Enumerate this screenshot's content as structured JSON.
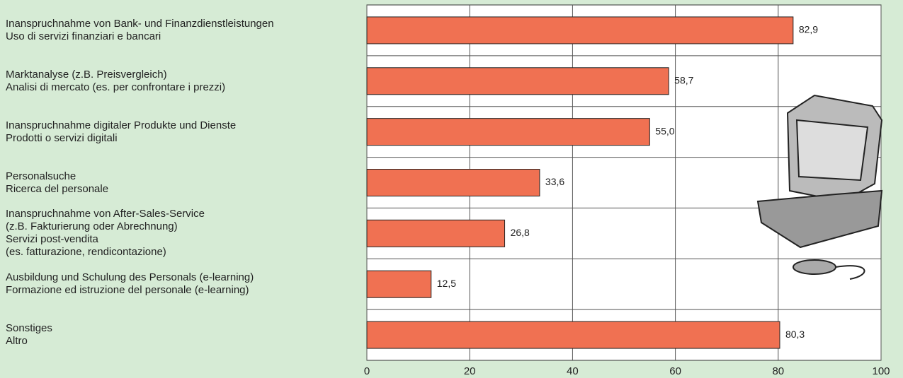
{
  "chart_data": {
    "type": "barh",
    "categories": [
      "Inanspruchnahme von Bank- und Finanzdienstleistungen\nUso di servizi finanziari e bancari",
      "Marktanalyse (z.B. Preisvergleich)\nAnalisi di mercato (es. per confrontare i prezzi)",
      "Inanspruchnahme digitaler Produkte und Dienste\nProdotti o servizi digitali",
      "Personalsuche\nRicerca del personale",
      "Inanspruchnahme von After-Sales-Service\n(z.B. Fakturierung oder Abrechnung)\nServizi post-vendita\n(es. fatturazione, rendicontazione)",
      "Ausbildung und Schulung des Personals (e-learning)\nFormazione ed istruzione del personale (e-learning)",
      "Sonstiges\nAltro"
    ],
    "values": [
      82.9,
      58.7,
      55.0,
      33.6,
      26.8,
      12.5,
      80.3
    ],
    "value_labels": [
      "82,9",
      "58,7",
      "55,0",
      "33,6",
      "26,8",
      "12,5",
      "80,3"
    ],
    "color": "#f07152",
    "xlim": [
      0,
      100
    ],
    "xticks": [
      0,
      20,
      40,
      60,
      80,
      100
    ],
    "grid": true
  }
}
